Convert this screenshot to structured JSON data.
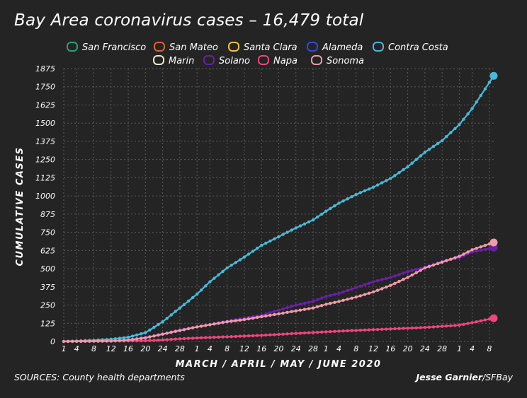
{
  "chart_data": {
    "type": "line",
    "title": "Bay Area coronavirus cases – 16,479 total",
    "xlabel": "MARCH / APRIL / MAY / JUNE 2020",
    "ylabel": "CUMULATIVE CASES",
    "ylim": [
      0,
      1875
    ],
    "y_ticks": [
      0,
      125,
      250,
      375,
      500,
      625,
      750,
      875,
      1000,
      1125,
      1250,
      1375,
      1500,
      1625,
      1750,
      1875
    ],
    "x_tick_labels": [
      "1",
      "4",
      "8",
      "12",
      "16",
      "20",
      "24",
      "28",
      "1",
      "4",
      "8",
      "12",
      "16",
      "20",
      "24",
      "28",
      "1",
      "4",
      "8",
      "12",
      "16",
      "20",
      "24",
      "28",
      "1",
      "4",
      "8"
    ],
    "x_tick_dates": [
      "2020-03-01",
      "2020-03-04",
      "2020-03-08",
      "2020-03-12",
      "2020-03-16",
      "2020-03-20",
      "2020-03-24",
      "2020-03-28",
      "2020-04-01",
      "2020-04-04",
      "2020-04-08",
      "2020-04-12",
      "2020-04-16",
      "2020-04-20",
      "2020-04-24",
      "2020-04-28",
      "2020-05-01",
      "2020-05-04",
      "2020-05-08",
      "2020-05-12",
      "2020-05-16",
      "2020-05-20",
      "2020-05-24",
      "2020-05-28",
      "2020-06-01",
      "2020-06-04",
      "2020-06-08"
    ],
    "grid": true,
    "legend_position": "top",
    "series": [
      {
        "name": "San Francisco",
        "color": "#2e9e78",
        "points": []
      },
      {
        "name": "San Mateo",
        "color": "#e0603a",
        "points": []
      },
      {
        "name": "Santa Clara",
        "color": "#f0c045",
        "points": []
      },
      {
        "name": "Alameda",
        "color": "#2d4fd8",
        "points": []
      },
      {
        "name": "Contra Costa",
        "color": "#4ab8d8",
        "points": [
          [
            "2020-03-01",
            0
          ],
          [
            "2020-03-08",
            8
          ],
          [
            "2020-03-12",
            15
          ],
          [
            "2020-03-16",
            29
          ],
          [
            "2020-03-20",
            60
          ],
          [
            "2020-03-24",
            135
          ],
          [
            "2020-03-28",
            230
          ],
          [
            "2020-04-01",
            325
          ],
          [
            "2020-04-04",
            410
          ],
          [
            "2020-04-08",
            505
          ],
          [
            "2020-04-12",
            580
          ],
          [
            "2020-04-16",
            660
          ],
          [
            "2020-04-20",
            720
          ],
          [
            "2020-04-24",
            780
          ],
          [
            "2020-04-28",
            835
          ],
          [
            "2020-05-01",
            895
          ],
          [
            "2020-05-04",
            950
          ],
          [
            "2020-05-08",
            1010
          ],
          [
            "2020-05-12",
            1060
          ],
          [
            "2020-05-16",
            1120
          ],
          [
            "2020-05-20",
            1200
          ],
          [
            "2020-05-24",
            1300
          ],
          [
            "2020-05-28",
            1380
          ],
          [
            "2020-06-01",
            1490
          ],
          [
            "2020-06-04",
            1600
          ],
          [
            "2020-06-06",
            1690
          ],
          [
            "2020-06-09",
            1825
          ]
        ]
      },
      {
        "name": "Marin",
        "color": "#e8eccc",
        "points": []
      },
      {
        "name": "Solano",
        "color": "#6a1fa8",
        "points": [
          [
            "2020-03-01",
            0
          ],
          [
            "2020-03-12",
            3
          ],
          [
            "2020-03-16",
            10
          ],
          [
            "2020-03-20",
            28
          ],
          [
            "2020-03-24",
            52
          ],
          [
            "2020-03-28",
            80
          ],
          [
            "2020-04-01",
            100
          ],
          [
            "2020-04-04",
            118
          ],
          [
            "2020-04-08",
            140
          ],
          [
            "2020-04-12",
            160
          ],
          [
            "2020-04-16",
            180
          ],
          [
            "2020-04-20",
            215
          ],
          [
            "2020-04-24",
            250
          ],
          [
            "2020-04-28",
            275
          ],
          [
            "2020-05-01",
            310
          ],
          [
            "2020-05-04",
            330
          ],
          [
            "2020-05-08",
            370
          ],
          [
            "2020-05-12",
            410
          ],
          [
            "2020-05-16",
            440
          ],
          [
            "2020-05-20",
            480
          ],
          [
            "2020-05-24",
            510
          ],
          [
            "2020-05-28",
            550
          ],
          [
            "2020-06-01",
            575
          ],
          [
            "2020-06-04",
            615
          ],
          [
            "2020-06-09",
            645
          ]
        ]
      },
      {
        "name": "Napa",
        "color": "#f0457e",
        "points": [
          [
            "2020-03-01",
            0
          ],
          [
            "2020-03-20",
            5
          ],
          [
            "2020-03-24",
            10
          ],
          [
            "2020-03-28",
            18
          ],
          [
            "2020-04-01",
            24
          ],
          [
            "2020-04-08",
            32
          ],
          [
            "2020-04-16",
            42
          ],
          [
            "2020-04-24",
            55
          ],
          [
            "2020-05-01",
            66
          ],
          [
            "2020-05-08",
            76
          ],
          [
            "2020-05-16",
            86
          ],
          [
            "2020-05-24",
            96
          ],
          [
            "2020-06-01",
            112
          ],
          [
            "2020-06-05",
            135
          ],
          [
            "2020-06-09",
            160
          ]
        ]
      },
      {
        "name": "Sonoma",
        "color": "#f09aa8",
        "points": [
          [
            "2020-03-01",
            0
          ],
          [
            "2020-03-12",
            3
          ],
          [
            "2020-03-16",
            10
          ],
          [
            "2020-03-20",
            25
          ],
          [
            "2020-03-24",
            50
          ],
          [
            "2020-03-28",
            75
          ],
          [
            "2020-04-01",
            100
          ],
          [
            "2020-04-04",
            115
          ],
          [
            "2020-04-08",
            135
          ],
          [
            "2020-04-12",
            150
          ],
          [
            "2020-04-16",
            170
          ],
          [
            "2020-04-20",
            190
          ],
          [
            "2020-04-24",
            210
          ],
          [
            "2020-04-28",
            230
          ],
          [
            "2020-05-01",
            255
          ],
          [
            "2020-05-04",
            275
          ],
          [
            "2020-05-08",
            305
          ],
          [
            "2020-05-12",
            340
          ],
          [
            "2020-05-16",
            385
          ],
          [
            "2020-05-20",
            440
          ],
          [
            "2020-05-24",
            505
          ],
          [
            "2020-05-28",
            545
          ],
          [
            "2020-06-01",
            585
          ],
          [
            "2020-06-04",
            630
          ],
          [
            "2020-06-09",
            680
          ]
        ]
      }
    ],
    "source": "SOURCES: County health departments",
    "credit_name": "Jesse Garnier",
    "credit_org": "/SFBay"
  }
}
